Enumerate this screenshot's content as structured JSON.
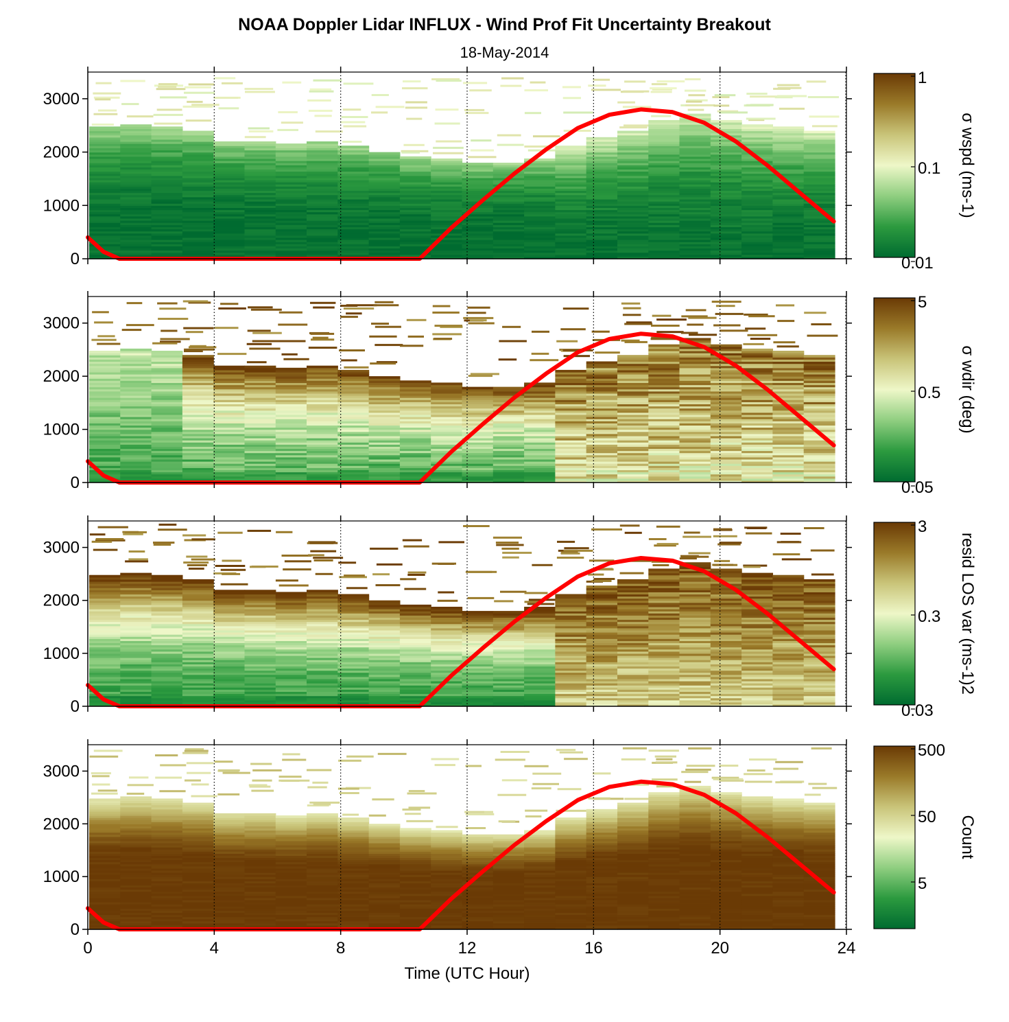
{
  "title": "NOAA Doppler Lidar INFLUX - Wind Prof Fit Uncertainty Breakout",
  "subtitle": "18-May-2014",
  "colors": {
    "daylight_curve": "#ff0000",
    "colormap": [
      "#006b30",
      "#2c9a3f",
      "#8fce80",
      "#eef7c8",
      "#c9c479",
      "#9a7a29",
      "#6a3a05"
    ]
  },
  "chart_data": [
    {
      "type": "heatmap",
      "ylabel": "σ wspd (ms-1)",
      "colorbar": {
        "scale": "log",
        "range": [
          0.01,
          1
        ],
        "tick_labels": [
          "1",
          "0.1",
          "0.01"
        ]
      },
      "ylim": [
        0,
        3500
      ],
      "yticks": [
        "0",
        "1000",
        "2000",
        "3000"
      ],
      "top_height_m": [
        2450,
        2500,
        2450,
        2400,
        2200,
        2200,
        2150,
        2200,
        2100,
        2000,
        1900,
        1850,
        1800,
        1800,
        1850,
        2100,
        2250,
        2400,
        2600,
        2700,
        2600,
        2500,
        2450,
        2400
      ],
      "description": "Low values (dark green, ~0.01-0.03) through most of the profile below ~1800 m, rising to ~0.1 near the top of valid data"
    },
    {
      "type": "heatmap",
      "ylabel": "σ wdir (deg)",
      "colorbar": {
        "scale": "log",
        "range": [
          0.05,
          5
        ],
        "tick_labels": [
          "5",
          "0.5",
          "0.05"
        ]
      },
      "ylim": [
        0,
        3500
      ],
      "yticks": [
        "0",
        "1000",
        "2000",
        "3000"
      ],
      "description": "Green (~0.1-0.3 deg) at low levels before 14 UTC; brown (~2-5 deg) above ~2000 m and throughout the afternoon"
    },
    {
      "type": "heatmap",
      "ylabel": "resid LOS var (ms-1)2",
      "colorbar": {
        "scale": "log",
        "range": [
          0.03,
          3
        ],
        "tick_labels": [
          "3",
          "0.3",
          "0.03"
        ]
      },
      "ylim": [
        0,
        3500
      ],
      "yticks": [
        "0",
        "1000",
        "2000",
        "3000"
      ],
      "description": "Green (~0.05-0.2) in morning boundary layer, brown (~1-3) near top of valid data and afternoon"
    },
    {
      "type": "heatmap",
      "ylabel": "Count",
      "colorbar": {
        "scale": "log",
        "range": [
          1,
          500
        ],
        "tick_labels": [
          "500",
          "50",
          "5"
        ]
      },
      "ylim": [
        0,
        3500
      ],
      "yticks": [
        "0",
        "1000",
        "2000",
        "3000"
      ],
      "description": "Counts ~500 (dark brown) below ~1500 m, decreasing with height to ~20-50 near the top of valid data"
    }
  ],
  "shared_x": {
    "xlabel": "Time (UTC Hour)",
    "xlim": [
      0,
      24
    ],
    "xticks": [
      "0",
      "4",
      "8",
      "12",
      "16",
      "20",
      "24"
    ]
  },
  "daylight_curve": {
    "x_hours": [
      0.0,
      0.5,
      1.0,
      2,
      4,
      6,
      8,
      10.5,
      11.5,
      12.5,
      13.5,
      14.5,
      15.5,
      16.5,
      17.5,
      18.5,
      19.5,
      20.5,
      21.5,
      22.5,
      23.6
    ],
    "y_m": [
      400,
      130,
      0,
      0,
      0,
      0,
      0,
      0,
      580,
      1100,
      1600,
      2050,
      2450,
      2700,
      2800,
      2750,
      2550,
      2200,
      1750,
      1250,
      700
    ]
  }
}
